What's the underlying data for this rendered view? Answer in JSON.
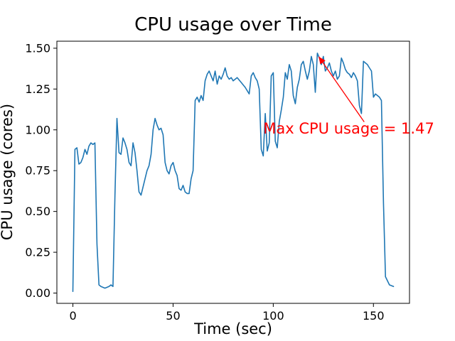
{
  "figure": {
    "title": "CPU usage over Time",
    "xlabel": "Time (sec)",
    "ylabel": "CPU usage (cores)",
    "background_color": "#ffffff"
  },
  "chart_data": {
    "type": "line",
    "title": "CPU usage over Time",
    "xlabel": "Time (sec)",
    "ylabel": "CPU usage (cores)",
    "line_color": "#1f77b4",
    "grid": false,
    "legend": null,
    "xlim": [
      -8,
      168
    ],
    "ylim": [
      -0.063,
      1.543
    ],
    "xticks": [
      0,
      50,
      100,
      150
    ],
    "yticks": [
      0.0,
      0.25,
      0.5,
      0.75,
      1.0,
      1.25,
      1.5
    ],
    "ytick_labels": [
      "0.00",
      "0.25",
      "0.50",
      "0.75",
      "1.00",
      "1.25",
      "1.50"
    ],
    "annotation": {
      "text": "Max CPU usage = 1.47",
      "color": "#ff0000",
      "xy": [
        122,
        1.47
      ],
      "xytext": [
        95,
        0.97
      ]
    },
    "points": [
      [
        0,
        0.01
      ],
      [
        1,
        0.88
      ],
      [
        2,
        0.89
      ],
      [
        3,
        0.79
      ],
      [
        4,
        0.8
      ],
      [
        5,
        0.83
      ],
      [
        6,
        0.88
      ],
      [
        7,
        0.85
      ],
      [
        8,
        0.9
      ],
      [
        9,
        0.92
      ],
      [
        10,
        0.91
      ],
      [
        11,
        0.92
      ],
      [
        12,
        0.3
      ],
      [
        13,
        0.05
      ],
      [
        14,
        0.04
      ],
      [
        16,
        0.03
      ],
      [
        18,
        0.04
      ],
      [
        19,
        0.05
      ],
      [
        20,
        0.04
      ],
      [
        21,
        0.6
      ],
      [
        22,
        1.07
      ],
      [
        23,
        0.86
      ],
      [
        24,
        0.85
      ],
      [
        25,
        0.95
      ],
      [
        26,
        0.92
      ],
      [
        27,
        0.88
      ],
      [
        28,
        0.8
      ],
      [
        29,
        0.78
      ],
      [
        30,
        0.92
      ],
      [
        31,
        0.86
      ],
      [
        32,
        0.75
      ],
      [
        33,
        0.62
      ],
      [
        34,
        0.6
      ],
      [
        35,
        0.65
      ],
      [
        36,
        0.7
      ],
      [
        37,
        0.75
      ],
      [
        38,
        0.78
      ],
      [
        39,
        0.85
      ],
      [
        40,
        1.0
      ],
      [
        41,
        1.07
      ],
      [
        42,
        1.03
      ],
      [
        43,
        1.0
      ],
      [
        44,
        1.01
      ],
      [
        45,
        0.97
      ],
      [
        46,
        0.8
      ],
      [
        47,
        0.75
      ],
      [
        48,
        0.73
      ],
      [
        49,
        0.78
      ],
      [
        50,
        0.8
      ],
      [
        51,
        0.75
      ],
      [
        52,
        0.72
      ],
      [
        53,
        0.64
      ],
      [
        54,
        0.63
      ],
      [
        55,
        0.66
      ],
      [
        56,
        0.62
      ],
      [
        57,
        0.61
      ],
      [
        58,
        0.61
      ],
      [
        59,
        0.7
      ],
      [
        60,
        0.75
      ],
      [
        61,
        1.18
      ],
      [
        62,
        1.2
      ],
      [
        63,
        1.17
      ],
      [
        64,
        1.21
      ],
      [
        65,
        1.18
      ],
      [
        66,
        1.3
      ],
      [
        67,
        1.34
      ],
      [
        68,
        1.36
      ],
      [
        69,
        1.33
      ],
      [
        70,
        1.3
      ],
      [
        71,
        1.36
      ],
      [
        72,
        1.28
      ],
      [
        73,
        1.33
      ],
      [
        74,
        1.31
      ],
      [
        75,
        1.34
      ],
      [
        76,
        1.38
      ],
      [
        77,
        1.33
      ],
      [
        78,
        1.31
      ],
      [
        79,
        1.32
      ],
      [
        80,
        1.3
      ],
      [
        82,
        1.32
      ],
      [
        84,
        1.29
      ],
      [
        86,
        1.26
      ],
      [
        88,
        1.22
      ],
      [
        89,
        1.33
      ],
      [
        90,
        1.35
      ],
      [
        91,
        1.32
      ],
      [
        92,
        1.3
      ],
      [
        93,
        1.25
      ],
      [
        94,
        0.88
      ],
      [
        95,
        0.84
      ],
      [
        96,
        1.1
      ],
      [
        97,
        0.87
      ],
      [
        98,
        0.92
      ],
      [
        99,
        1.33
      ],
      [
        100,
        1.35
      ],
      [
        101,
        0.93
      ],
      [
        102,
        0.89
      ],
      [
        103,
        1.05
      ],
      [
        104,
        1.12
      ],
      [
        105,
        1.2
      ],
      [
        106,
        1.35
      ],
      [
        107,
        1.31
      ],
      [
        108,
        1.4
      ],
      [
        109,
        1.36
      ],
      [
        110,
        1.21
      ],
      [
        111,
        1.16
      ],
      [
        112,
        1.26
      ],
      [
        113,
        1.31
      ],
      [
        114,
        1.4
      ],
      [
        115,
        1.42
      ],
      [
        116,
        1.36
      ],
      [
        117,
        1.31
      ],
      [
        118,
        1.36
      ],
      [
        119,
        1.45
      ],
      [
        120,
        1.4
      ],
      [
        121,
        1.23
      ],
      [
        122,
        1.47
      ],
      [
        123,
        1.44
      ],
      [
        124,
        1.4
      ],
      [
        125,
        1.45
      ],
      [
        126,
        1.36
      ],
      [
        127,
        1.38
      ],
      [
        128,
        1.41
      ],
      [
        129,
        1.36
      ],
      [
        130,
        1.33
      ],
      [
        131,
        1.36
      ],
      [
        132,
        1.31
      ],
      [
        133,
        1.33
      ],
      [
        134,
        1.44
      ],
      [
        135,
        1.41
      ],
      [
        136,
        1.37
      ],
      [
        137,
        1.35
      ],
      [
        138,
        1.34
      ],
      [
        139,
        1.32
      ],
      [
        140,
        1.35
      ],
      [
        141,
        1.33
      ],
      [
        142,
        1.3
      ],
      [
        143,
        1.15
      ],
      [
        144,
        1.1
      ],
      [
        145,
        1.42
      ],
      [
        146,
        1.41
      ],
      [
        147,
        1.4
      ],
      [
        148,
        1.38
      ],
      [
        149,
        1.36
      ],
      [
        150,
        1.2
      ],
      [
        151,
        1.22
      ],
      [
        152,
        1.21
      ],
      [
        153,
        1.2
      ],
      [
        154,
        1.18
      ],
      [
        155,
        0.55
      ],
      [
        156,
        0.1
      ],
      [
        158,
        0.05
      ],
      [
        160,
        0.04
      ]
    ]
  }
}
